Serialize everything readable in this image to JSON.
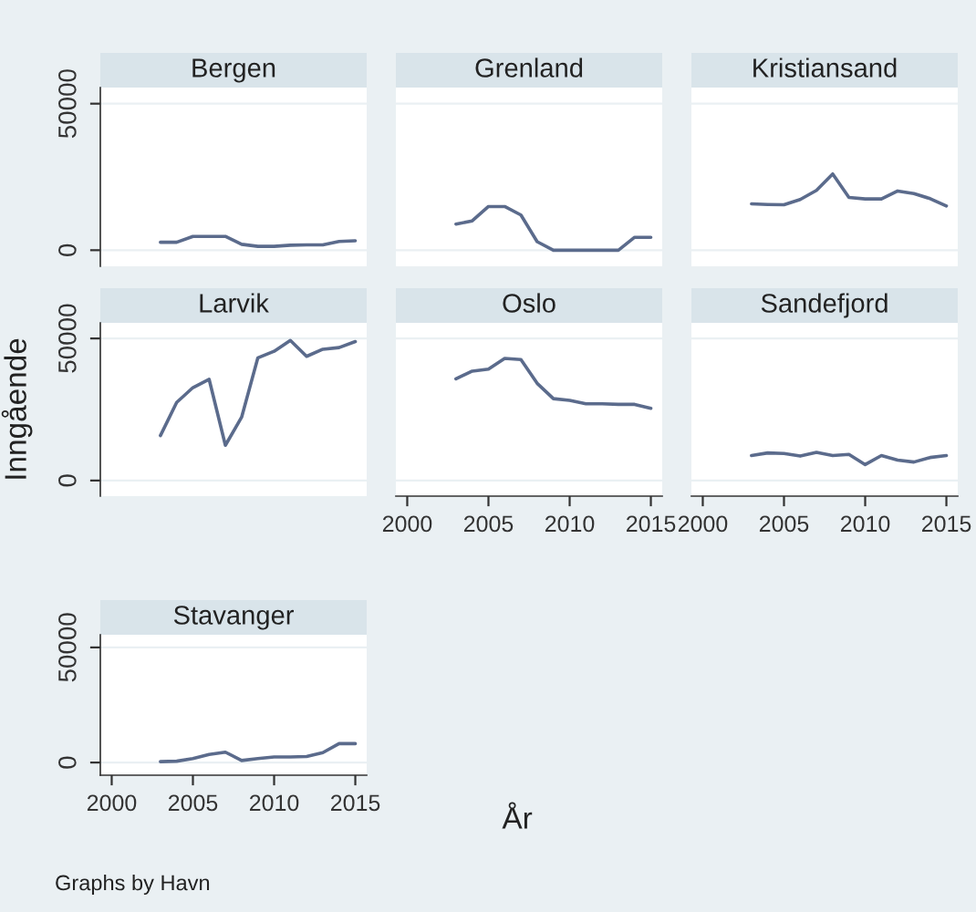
{
  "chart_data": [
    {
      "type": "line",
      "title": "Bergen",
      "x": [
        2003,
        2004,
        2005,
        2006,
        2007,
        2008,
        2009,
        2010,
        2011,
        2012,
        2013,
        2014,
        2015
      ],
      "values": [
        2700,
        2700,
        4700,
        4700,
        4700,
        2000,
        1300,
        1300,
        1700,
        1800,
        1800,
        3000,
        3200
      ],
      "color": "#5b6b8c",
      "xlim": [
        1999.3,
        2015.7
      ],
      "ylim": [
        -5500,
        55500
      ],
      "xticks": [
        2000,
        2005,
        2010,
        2015
      ],
      "yticks": [
        0,
        50000
      ],
      "grid": "y",
      "tick_labels": "y"
    },
    {
      "type": "line",
      "title": "Grenland",
      "x": [
        2003,
        2004,
        2005,
        2006,
        2007,
        2008,
        2009,
        2010,
        2011,
        2012,
        2013,
        2014,
        2015
      ],
      "values": [
        8900,
        10000,
        14900,
        14900,
        12000,
        2900,
        0,
        0,
        0,
        0,
        0,
        4400,
        4400
      ],
      "color": "#5b6b8c",
      "xlim": [
        1999.3,
        2015.7
      ],
      "ylim": [
        -5500,
        55500
      ],
      "xticks": [
        2000,
        2005,
        2010,
        2015
      ],
      "yticks": [
        0,
        50000
      ],
      "grid": "y",
      "tick_labels": false
    },
    {
      "type": "line",
      "title": "Kristiansand",
      "x": [
        2003,
        2004,
        2005,
        2006,
        2007,
        2008,
        2009,
        2010,
        2011,
        2012,
        2013,
        2014,
        2015
      ],
      "values": [
        15800,
        15600,
        15500,
        17300,
        20400,
        26000,
        18000,
        17500,
        17500,
        20200,
        19300,
        17600,
        15100
      ],
      "color": "#5b6b8c",
      "xlim": [
        1999.3,
        2015.7
      ],
      "ylim": [
        -5500,
        55500
      ],
      "xticks": [
        2000,
        2005,
        2010,
        2015
      ],
      "yticks": [
        0,
        50000
      ],
      "grid": "y",
      "tick_labels": false
    },
    {
      "type": "line",
      "title": "Larvik",
      "ylabel": "Inngående",
      "x": [
        2003,
        2004,
        2005,
        2006,
        2007,
        2008,
        2009,
        2010,
        2011,
        2012,
        2013,
        2014,
        2015
      ],
      "values": [
        15800,
        27500,
        32700,
        35600,
        12400,
        22300,
        43200,
        45500,
        49300,
        43700,
        46200,
        46800,
        48900
      ],
      "color": "#5b6b8c",
      "xlim": [
        1999.3,
        2015.7
      ],
      "ylim": [
        -5500,
        55500
      ],
      "xticks": [
        2000,
        2005,
        2010,
        2015
      ],
      "yticks": [
        0,
        50000
      ],
      "grid": "y",
      "tick_labels": "y"
    },
    {
      "type": "line",
      "title": "Oslo",
      "x": [
        2003,
        2004,
        2005,
        2006,
        2007,
        2008,
        2009,
        2010,
        2011,
        2012,
        2013,
        2014,
        2015
      ],
      "values": [
        35800,
        38500,
        39200,
        43000,
        42600,
        34200,
        28800,
        28200,
        27000,
        27000,
        26800,
        26800,
        25400
      ],
      "color": "#5b6b8c",
      "xlim": [
        1999.3,
        2015.7
      ],
      "ylim": [
        -5500,
        55500
      ],
      "xticks": [
        2000,
        2005,
        2010,
        2015
      ],
      "yticks": [
        0,
        50000
      ],
      "grid": "y",
      "tick_labels": "x"
    },
    {
      "type": "line",
      "title": "Sandefjord",
      "x": [
        2003,
        2004,
        2005,
        2006,
        2007,
        2008,
        2009,
        2010,
        2011,
        2012,
        2013,
        2014,
        2015
      ],
      "values": [
        8800,
        9700,
        9500,
        8600,
        9900,
        8800,
        9200,
        5600,
        8800,
        7200,
        6500,
        8100,
        8800
      ],
      "color": "#5b6b8c",
      "xlim": [
        1999.3,
        2015.7
      ],
      "ylim": [
        -5500,
        55500
      ],
      "xticks": [
        2000,
        2005,
        2010,
        2015
      ],
      "yticks": [
        0,
        50000
      ],
      "grid": "y",
      "tick_labels": "x"
    },
    {
      "type": "line",
      "title": "Stavanger",
      "xlabel": "År",
      "annotations": [
        "Graphs by Havn"
      ],
      "x": [
        2003,
        2004,
        2005,
        2006,
        2007,
        2008,
        2009,
        2010,
        2011,
        2012,
        2013,
        2014,
        2015
      ],
      "values": [
        400,
        600,
        1700,
        3500,
        4500,
        900,
        1700,
        2400,
        2400,
        2600,
        4300,
        8200,
        8200
      ],
      "color": "#5b6b8c",
      "xlim": [
        1999.3,
        2015.7
      ],
      "ylim": [
        -5500,
        55500
      ],
      "xticks": [
        2000,
        2005,
        2010,
        2015
      ],
      "yticks": [
        0,
        50000
      ],
      "grid": "y"
    }
  ]
}
